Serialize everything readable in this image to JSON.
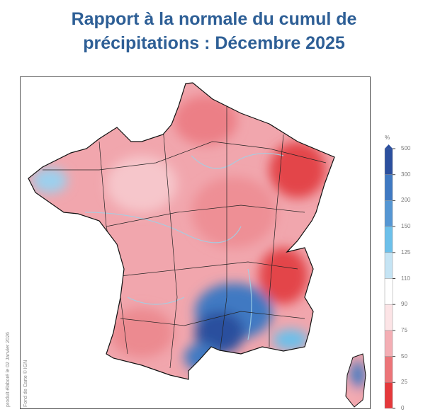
{
  "title": {
    "line1": "Rapport à la normale du cumul de",
    "line2": "précipitations : Décembre 2025"
  },
  "credits": {
    "produced": "produit élaboré le 02 Janvier 2026",
    "basemap": "Fond de Carte © IGN"
  },
  "legend": {
    "unit": "%",
    "ticks": [
      "500",
      "300",
      "200",
      "150",
      "125",
      "110",
      "90",
      "75",
      "50",
      "25",
      "0"
    ],
    "colors": [
      "#2b4f9e",
      "#3f79c2",
      "#5596d3",
      "#6cc0ea",
      "#c5e4f4",
      "#ffffff",
      "#fce4e6",
      "#f4aeb4",
      "#ec7478",
      "#e5383b"
    ]
  }
}
